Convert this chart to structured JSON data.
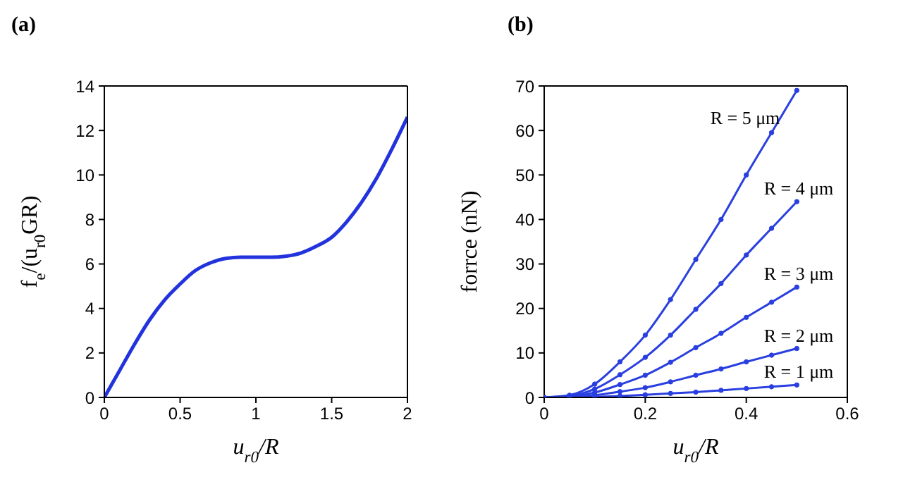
{
  "chart_data": [
    {
      "type": "line",
      "title": "(a)",
      "xlabel": "u$_{r0}$/R",
      "ylabel": "f$_{e}$/(u$_{r0}$GR)",
      "xlim": [
        0,
        2
      ],
      "ylim": [
        0,
        14
      ],
      "xticks": [
        0,
        0.5,
        1,
        1.5,
        2
      ],
      "yticks": [
        0,
        2,
        4,
        6,
        8,
        10,
        12,
        14
      ],
      "series": [
        {
          "color": "#2233dd",
          "x": [
            0,
            0.1,
            0.2,
            0.3,
            0.4,
            0.5,
            0.6,
            0.7,
            0.8,
            0.9,
            1.0,
            1.1,
            1.2,
            1.3,
            1.4,
            1.5,
            1.6,
            1.7,
            1.8,
            1.9,
            2.0
          ],
          "values": [
            0,
            1.2,
            2.4,
            3.5,
            4.4,
            5.1,
            5.7,
            6.05,
            6.25,
            6.3,
            6.3,
            6.3,
            6.35,
            6.5,
            6.8,
            7.2,
            7.9,
            8.8,
            9.9,
            11.2,
            12.6
          ]
        }
      ]
    },
    {
      "type": "line",
      "title": "(b)",
      "xlabel": "u$_{r0}$/R",
      "ylabel": "forrce (nN)",
      "xlim": [
        0,
        0.6
      ],
      "ylim": [
        0,
        70
      ],
      "xticks": [
        0,
        0.2,
        0.4,
        0.6
      ],
      "yticks": [
        0,
        10,
        20,
        30,
        40,
        50,
        60,
        70
      ],
      "marker": "circle",
      "x": [
        0,
        0.05,
        0.1,
        0.15,
        0.2,
        0.25,
        0.3,
        0.35,
        0.4,
        0.45,
        0.5
      ],
      "series": [
        {
          "name": "R = 5 μm",
          "color": "#2a3fe0",
          "values": [
            0,
            0.5,
            3,
            8,
            14,
            22,
            31,
            40,
            50,
            59.5,
            69
          ]
        },
        {
          "name": "R = 4 μm",
          "color": "#2a3fe0",
          "values": [
            0,
            0.3,
            1.9,
            5.1,
            9,
            14,
            19.8,
            25.6,
            32,
            38,
            44
          ]
        },
        {
          "name": "R = 3 μm",
          "color": "#2a3fe0",
          "values": [
            0,
            0.2,
            1.1,
            2.9,
            5,
            7.9,
            11.2,
            14.4,
            18,
            21.4,
            24.8
          ]
        },
        {
          "name": "R = 2 μm",
          "color": "#2a3fe0",
          "values": [
            0,
            0.1,
            0.5,
            1.3,
            2.2,
            3.5,
            5,
            6.4,
            8,
            9.5,
            11
          ]
        },
        {
          "name": "R = 1 μm",
          "color": "#2a3fe0",
          "values": [
            0,
            0,
            0.1,
            0.3,
            0.6,
            0.9,
            1.2,
            1.6,
            2,
            2.4,
            2.8
          ]
        }
      ]
    }
  ]
}
